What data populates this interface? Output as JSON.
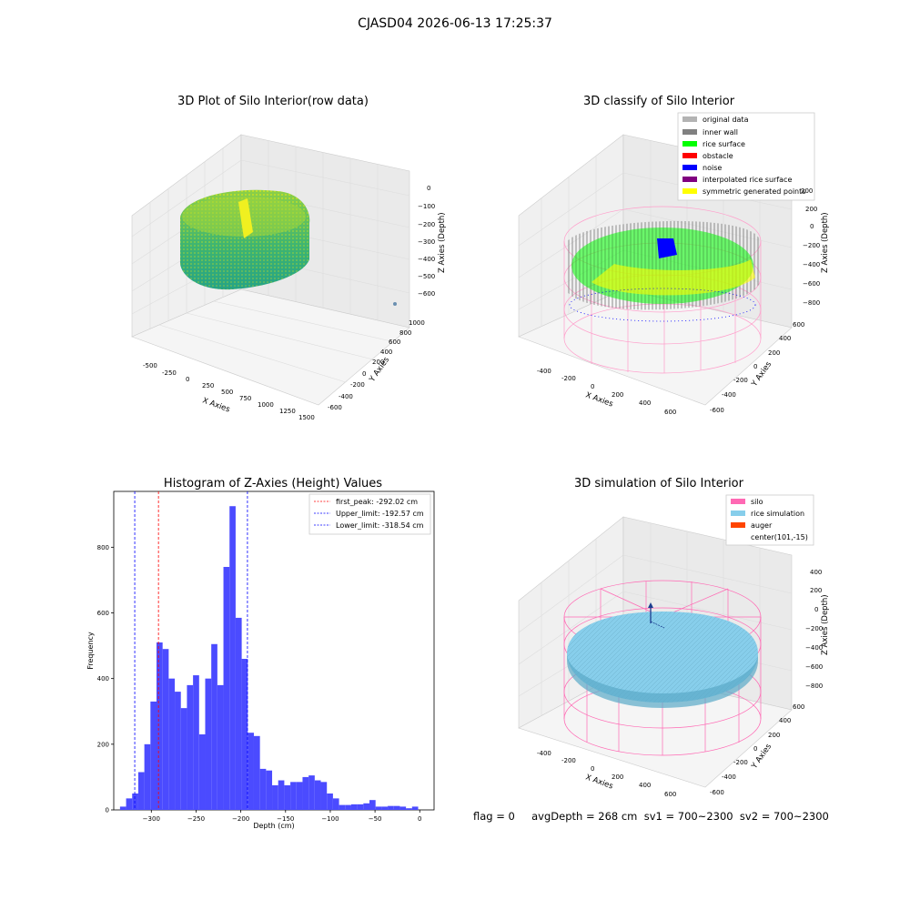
{
  "figure": {
    "suptitle": "CJASD04 2026-06-13 17:25:37"
  },
  "footer": {
    "text": "flag = 0     avgDepth = 268 cm  sv1 = 700~2300  sv2 = 700~2300"
  },
  "colors": {
    "original": "#b3b3b3",
    "inner_wall": "#808080",
    "rice_surface": "#00ff00",
    "obstacle": "#ff0000",
    "noise": "#0000ff",
    "interp": "#800080",
    "symmetric": "#ffff00",
    "silo": "#ff69b4",
    "rice_sim": "#87ceeb",
    "auger": "#ff4500",
    "hist": "#4b4bff"
  },
  "chart_data": [
    {
      "type": "scatter",
      "title": "3D Plot of Silo Interior(row data)",
      "xlabel": "X Axies",
      "ylabel": "Y Axies",
      "zlabel": "Z Axies (Depth)",
      "x_ticks": [
        "-500",
        "-250",
        "0",
        "250",
        "500",
        "750",
        "1000",
        "1250",
        "1500"
      ],
      "y_ticks": [
        "-600",
        "-400",
        "-200",
        "0",
        "200",
        "400",
        "600",
        "800",
        "1000"
      ],
      "z_ticks": [
        "0",
        "−100",
        "−200",
        "−300",
        "−400",
        "−500",
        "−600"
      ]
    },
    {
      "type": "scatter",
      "title": "3D classify of Silo Interior",
      "xlabel": "X Axies",
      "ylabel": "Y Axies",
      "zlabel": "Z Axies (Depth)",
      "x_ticks": [
        "-400",
        "-200",
        "0",
        "200",
        "400",
        "600"
      ],
      "y_ticks": [
        "-600",
        "-400",
        "-200",
        "0",
        "200",
        "400",
        "600"
      ],
      "z_ticks": [
        "200",
        "0",
        "−200",
        "−400",
        "−600",
        "−800"
      ],
      "legend": [
        "original data",
        "inner wall",
        "rice surface",
        "obstacle",
        "noise",
        "interpolated rice surface",
        "symmetric generated points"
      ]
    },
    {
      "type": "bar",
      "title": "Histogram of Z-Axies (Height) Values",
      "xlabel": "Depth (cm)",
      "ylabel": "Frequency",
      "xlim": [
        -342,
        16
      ],
      "ylim": [
        0,
        970
      ],
      "x_ticks": [
        -300,
        -250,
        -200,
        -150,
        -100,
        -50,
        0
      ],
      "y_ticks": [
        0,
        200,
        400,
        600,
        800
      ],
      "bin_width": 6.8,
      "bin_start": -335.0,
      "values": [
        10,
        35,
        50,
        115,
        200,
        330,
        510,
        490,
        400,
        360,
        310,
        380,
        410,
        230,
        400,
        505,
        380,
        740,
        925,
        585,
        460,
        235,
        225,
        125,
        120,
        75,
        90,
        75,
        85,
        85,
        100,
        105,
        90,
        85,
        50,
        35,
        15,
        15,
        17,
        17,
        20,
        30,
        10,
        10,
        12,
        12,
        10,
        5,
        10
      ],
      "lines": [
        {
          "name": "first_peak: -292.02 cm",
          "x": -292.02,
          "color": "#ff0000"
        },
        {
          "name": "Upper_limit: -192.57 cm",
          "x": -192.57,
          "color": "#0000ff"
        },
        {
          "name": "Lower_limit: -318.54 cm",
          "x": -318.54,
          "color": "#0000ff"
        }
      ]
    },
    {
      "type": "area",
      "title": "3D simulation of Silo Interior",
      "xlabel": "X Axies",
      "ylabel": "Y Axies",
      "zlabel": "Z Axies (Depth)",
      "x_ticks": [
        "-400",
        "-200",
        "0",
        "200",
        "400",
        "600"
      ],
      "y_ticks": [
        "-600",
        "-400",
        "-200",
        "0",
        "200",
        "400",
        "600"
      ],
      "z_ticks": [
        "400",
        "200",
        "0",
        "−200",
        "−400",
        "−600",
        "−800"
      ],
      "legend": [
        "silo",
        "rice simulation",
        "auger",
        "center(101,-15)"
      ]
    }
  ]
}
